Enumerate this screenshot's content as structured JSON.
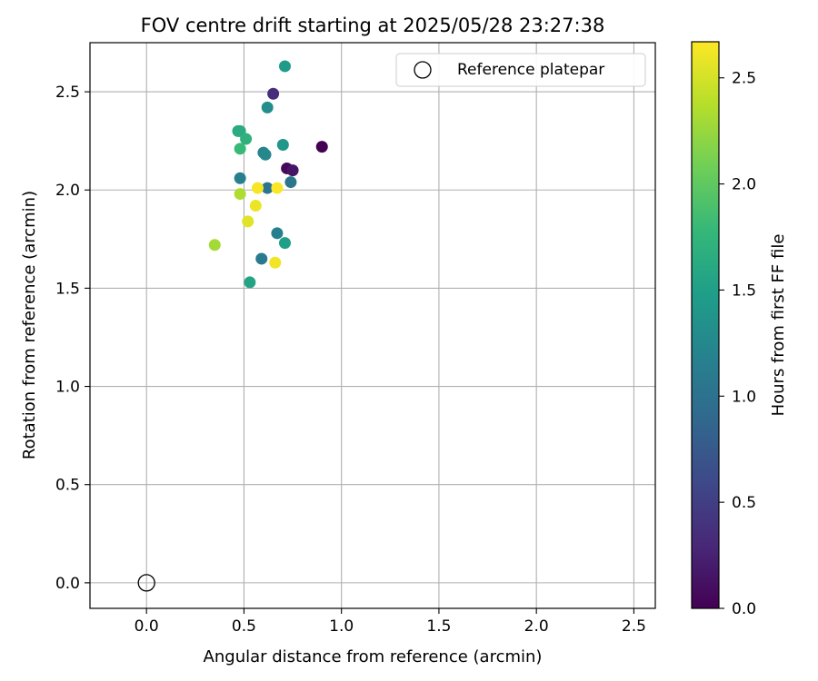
{
  "chart_data": {
    "type": "scatter",
    "title": "FOV centre drift starting at 2025/05/28 23:27:38",
    "xlabel": "Angular distance from reference (arcmin)",
    "ylabel": "Rotation from reference (arcmin)",
    "xlim": [
      -0.29,
      2.61
    ],
    "ylim": [
      -0.13,
      2.75
    ],
    "x_ticks": [
      0.0,
      0.5,
      1.0,
      1.5,
      2.0,
      2.5
    ],
    "x_tick_labels": [
      "0.0",
      "0.5",
      "1.0",
      "1.5",
      "2.0",
      "2.5"
    ],
    "y_ticks": [
      0.0,
      0.5,
      1.0,
      1.5,
      2.0,
      2.5
    ],
    "y_tick_labels": [
      "0.0",
      "0.5",
      "1.0",
      "1.5",
      "2.0",
      "2.5"
    ],
    "grid": true,
    "legend": {
      "position": "top-right",
      "entries": [
        "Reference platepar"
      ]
    },
    "reference_point": {
      "x": 0.0,
      "y": 0.0,
      "label": "Reference platepar"
    },
    "colorbar": {
      "label": "Hours from first FF file",
      "min": 0.0,
      "max": 2.67,
      "colormap": "viridis",
      "ticks": [
        0.0,
        0.5,
        1.0,
        1.5,
        2.0,
        2.5
      ],
      "tick_labels": [
        "0.0",
        "0.5",
        "1.0",
        "1.5",
        "2.0",
        "2.5"
      ]
    },
    "series": [
      {
        "name": "FOV centre drift",
        "points": [
          {
            "x": 0.9,
            "y": 2.22,
            "hours": 0.0
          },
          {
            "x": 0.72,
            "y": 2.11,
            "hours": 0.05
          },
          {
            "x": 0.75,
            "y": 2.1,
            "hours": 0.15
          },
          {
            "x": 0.65,
            "y": 2.49,
            "hours": 0.35
          },
          {
            "x": 0.74,
            "y": 2.04,
            "hours": 1.05
          },
          {
            "x": 0.62,
            "y": 2.01,
            "hours": 1.05
          },
          {
            "x": 0.59,
            "y": 1.65,
            "hours": 1.1
          },
          {
            "x": 0.67,
            "y": 1.78,
            "hours": 1.15
          },
          {
            "x": 0.48,
            "y": 2.06,
            "hours": 1.15
          },
          {
            "x": 0.6,
            "y": 2.19,
            "hours": 1.2
          },
          {
            "x": 0.61,
            "y": 2.18,
            "hours": 1.25
          },
          {
            "x": 0.62,
            "y": 2.42,
            "hours": 1.3
          },
          {
            "x": 0.7,
            "y": 2.23,
            "hours": 1.4
          },
          {
            "x": 0.71,
            "y": 2.63,
            "hours": 1.45
          },
          {
            "x": 0.71,
            "y": 1.73,
            "hours": 1.5
          },
          {
            "x": 0.53,
            "y": 1.53,
            "hours": 1.55
          },
          {
            "x": 0.47,
            "y": 2.3,
            "hours": 1.6
          },
          {
            "x": 0.48,
            "y": 2.3,
            "hours": 1.65
          },
          {
            "x": 0.51,
            "y": 2.26,
            "hours": 1.7
          },
          {
            "x": 0.48,
            "y": 2.21,
            "hours": 1.8
          },
          {
            "x": 0.35,
            "y": 1.72,
            "hours": 2.3
          },
          {
            "x": 0.48,
            "y": 1.98,
            "hours": 2.35
          },
          {
            "x": 0.52,
            "y": 1.84,
            "hours": 2.55
          },
          {
            "x": 0.56,
            "y": 1.92,
            "hours": 2.6
          },
          {
            "x": 0.66,
            "y": 1.63,
            "hours": 2.62
          },
          {
            "x": 0.57,
            "y": 2.01,
            "hours": 2.64
          },
          {
            "x": 0.67,
            "y": 2.01,
            "hours": 2.66
          }
        ]
      }
    ]
  },
  "colors": {
    "axis": "#000000",
    "grid": "#b0b0b0",
    "viridis": [
      "#440154",
      "#482878",
      "#3e4989",
      "#31688e",
      "#26828e",
      "#1f9e89",
      "#35b779",
      "#6ece58",
      "#b5de2b",
      "#fde725"
    ]
  }
}
